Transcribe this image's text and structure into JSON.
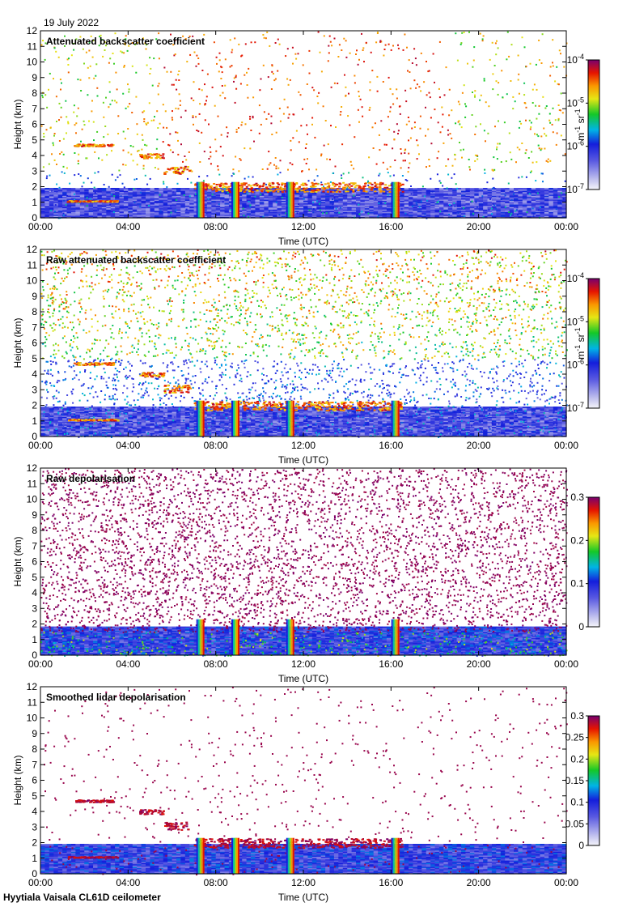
{
  "date": "19 July 2022",
  "footer": "Hyytiala Vaisala CL61D ceilometer",
  "chart_data": [
    {
      "type": "heatmap",
      "title": "Attenuated backscatter coefficient",
      "xlabel": "Time (UTC)",
      "ylabel": "Height (km)",
      "x_ticks": [
        "00:00",
        "04:00",
        "08:00",
        "12:00",
        "16:00",
        "20:00",
        "00:00"
      ],
      "y_ticks": [
        0,
        1,
        2,
        3,
        4,
        5,
        6,
        7,
        8,
        9,
        10,
        11,
        12
      ],
      "ylim": [
        0,
        12
      ],
      "colorbar": {
        "scale": "log",
        "range": [
          1e-07,
          0.0001
        ],
        "ticks": [
          {
            "base": "10",
            "exp": "-4",
            "value": 0.0001
          },
          {
            "base": "10",
            "exp": "-5",
            "value": 1e-05
          },
          {
            "base": "10",
            "exp": "-6",
            "value": 1e-06
          },
          {
            "base": "10",
            "exp": "-7",
            "value": 1e-07
          }
        ],
        "units": {
          "base1": "m",
          "exp1": "-1",
          "base2": " sr",
          "exp2": "-1"
        }
      }
    },
    {
      "type": "heatmap",
      "title": "Raw attenuated backscatter coefficient",
      "xlabel": "Time (UTC)",
      "ylabel": "Height (km)",
      "x_ticks": [
        "00:00",
        "04:00",
        "08:00",
        "12:00",
        "16:00",
        "20:00",
        "00:00"
      ],
      "y_ticks": [
        0,
        1,
        2,
        3,
        4,
        5,
        6,
        7,
        8,
        9,
        10,
        11,
        12
      ],
      "ylim": [
        0,
        12
      ],
      "colorbar": {
        "scale": "log",
        "range": [
          1e-07,
          0.0001
        ],
        "ticks": [
          {
            "base": "10",
            "exp": "-4",
            "value": 0.0001
          },
          {
            "base": "10",
            "exp": "-5",
            "value": 1e-05
          },
          {
            "base": "10",
            "exp": "-6",
            "value": 1e-06
          },
          {
            "base": "10",
            "exp": "-7",
            "value": 1e-07
          }
        ],
        "units": {
          "base1": "m",
          "exp1": "-1",
          "base2": " sr",
          "exp2": "-1"
        }
      }
    },
    {
      "type": "heatmap",
      "title": "Raw depolarisation",
      "xlabel": "Time (UTC)",
      "ylabel": "Height (km)",
      "x_ticks": [
        "00:00",
        "04:00",
        "08:00",
        "12:00",
        "16:00",
        "20:00",
        "00:00"
      ],
      "y_ticks": [
        0,
        1,
        2,
        3,
        4,
        5,
        6,
        7,
        8,
        9,
        10,
        11,
        12
      ],
      "ylim": [
        0,
        12
      ],
      "colorbar": {
        "scale": "linear",
        "range": [
          0,
          0.3
        ],
        "ticks": [
          {
            "label": "0.3",
            "value": 0.3
          },
          {
            "label": "0.2",
            "value": 0.2
          },
          {
            "label": "0.1",
            "value": 0.1
          },
          {
            "label": "0",
            "value": 0
          }
        ]
      }
    },
    {
      "type": "heatmap",
      "title": "Smoothed lidar depolarisation",
      "xlabel": "Time (UTC)",
      "ylabel": "Height (km)",
      "x_ticks": [
        "00:00",
        "04:00",
        "08:00",
        "12:00",
        "16:00",
        "20:00",
        "00:00"
      ],
      "y_ticks": [
        0,
        1,
        2,
        3,
        4,
        5,
        6,
        7,
        8,
        9,
        10,
        11,
        12
      ],
      "ylim": [
        0,
        12
      ],
      "colorbar": {
        "scale": "linear",
        "range": [
          0,
          0.3
        ],
        "ticks": [
          {
            "label": "0.3",
            "value": 0.3
          },
          {
            "label": "0.25",
            "value": 0.25
          },
          {
            "label": "0.2",
            "value": 0.2
          },
          {
            "label": "0.15",
            "value": 0.15
          },
          {
            "label": "0.1",
            "value": 0.1
          },
          {
            "label": "0.05",
            "value": 0.05
          },
          {
            "label": "0",
            "value": 0
          }
        ]
      }
    }
  ]
}
